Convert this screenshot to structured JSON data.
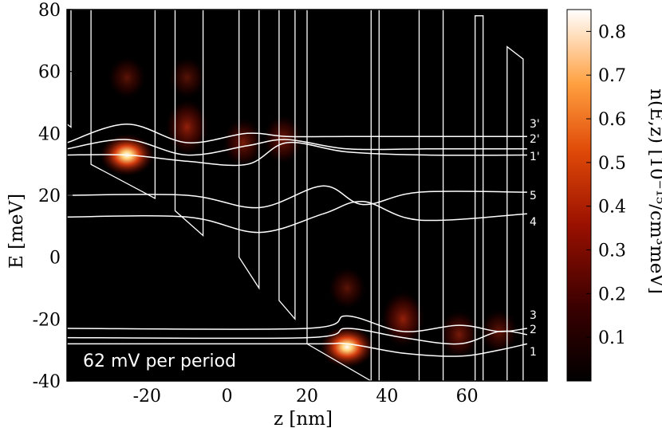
{
  "chart_data": {
    "type": "heatmap",
    "xlabel": "z [nm]",
    "ylabel": "E [meV]",
    "colorbar_label": "n(E,z) [10⁻¹⁵/cm³meV]",
    "colorbar_range": [
      0,
      0.85
    ],
    "colorbar_ticks": [
      "0.1",
      "0.2",
      "0.3",
      "0.4",
      "0.5",
      "0.6",
      "0.7",
      "0.8"
    ],
    "xlim": [
      -40,
      80
    ],
    "ylim": [
      -40,
      80
    ],
    "x_ticks": [
      "-20",
      "0",
      "20",
      "40",
      "60"
    ],
    "y_ticks": [
      "-40",
      "-20",
      "0",
      "20",
      "40",
      "60",
      "80"
    ],
    "annotation": "62 mV per period",
    "state_labels": [
      "3'",
      "2'",
      "1'",
      "5",
      "4",
      "3",
      "2",
      "1"
    ],
    "colors": {
      "background": "#000000",
      "curves": "#ffffff",
      "hot": "#ffffff",
      "mid": "#c82000"
    },
    "density_hotspots": [
      {
        "z": -25,
        "E": 33,
        "value": 0.85
      },
      {
        "z": -10,
        "E": 42,
        "value": 0.45
      },
      {
        "z": 4,
        "E": 37,
        "value": 0.3
      },
      {
        "z": 14,
        "E": 38,
        "value": 0.3
      },
      {
        "z": -25,
        "E": 58,
        "value": 0.15
      },
      {
        "z": -10,
        "E": 58,
        "value": 0.13
      },
      {
        "z": 30,
        "E": -29,
        "value": 0.85
      },
      {
        "z": 44,
        "E": -20,
        "value": 0.45
      },
      {
        "z": 58,
        "E": -25,
        "value": 0.3
      },
      {
        "z": 68,
        "E": -24,
        "value": 0.2
      },
      {
        "z": 30,
        "E": -10,
        "value": 0.15
      }
    ],
    "band_edges": [
      {
        "z": [
          -42,
          -39,
          -39,
          -34,
          -34,
          -18,
          -18,
          -13,
          -13,
          -6,
          -6,
          3,
          3,
          8,
          8,
          13,
          13,
          17,
          17,
          20
        ],
        "E": [
          45,
          42,
          80,
          80,
          30,
          19,
          80,
          80,
          15,
          7,
          80,
          80,
          0,
          -10,
          80,
          80,
          -14,
          -20,
          80,
          80
        ]
      },
      {
        "z": [
          20,
          20,
          36,
          36,
          38,
          38,
          48,
          48,
          54,
          54,
          62,
          62,
          64,
          64,
          70,
          70,
          74,
          74
        ],
        "E": [
          80,
          -28,
          -40,
          80,
          80,
          -40,
          -40,
          80,
          80,
          -40,
          -40,
          78,
          78,
          -40,
          -40,
          68,
          64,
          -40
        ]
      }
    ],
    "wavefunction_curves": [
      {
        "name": "3'",
        "z": [
          -40,
          -25,
          -10,
          5,
          15,
          30,
          50,
          75
        ],
        "E": [
          37,
          43,
          37,
          40,
          39,
          39,
          39,
          39
        ]
      },
      {
        "name": "2'",
        "z": [
          -40,
          -25,
          -10,
          5,
          15,
          30,
          50,
          75
        ],
        "E": [
          35,
          38,
          33,
          36,
          38,
          35,
          35,
          35
        ]
      },
      {
        "name": "1'",
        "z": [
          -40,
          -25,
          -10,
          5,
          15,
          30,
          50,
          75
        ],
        "E": [
          33,
          33,
          31,
          30,
          37,
          34,
          33,
          33
        ]
      },
      {
        "name": "5",
        "z": [
          -40,
          -10,
          8,
          24,
          34,
          48,
          75
        ],
        "E": [
          20,
          20,
          16,
          23,
          17,
          21,
          21
        ]
      },
      {
        "name": "4",
        "z": [
          -40,
          -10,
          8,
          24,
          34,
          48,
          75
        ],
        "E": [
          13,
          13,
          8,
          14,
          18,
          12,
          14
        ]
      },
      {
        "name": "3",
        "z": [
          -40,
          20,
          30,
          44,
          58,
          68,
          75
        ],
        "E": [
          -23,
          -23,
          -19,
          -24,
          -22,
          -24,
          -23
        ]
      },
      {
        "name": "2",
        "z": [
          -40,
          20,
          30,
          44,
          58,
          68,
          75
        ],
        "E": [
          -26,
          -26,
          -23,
          -26,
          -28,
          -24,
          -25
        ]
      },
      {
        "name": "1",
        "z": [
          -40,
          20,
          30,
          44,
          58,
          68,
          75
        ],
        "E": [
          -28,
          -28,
          -28,
          -31,
          -32,
          -30,
          -28
        ]
      }
    ]
  }
}
